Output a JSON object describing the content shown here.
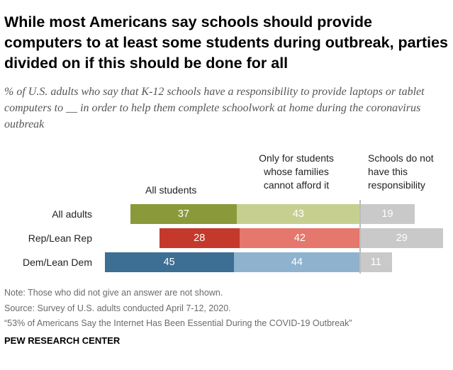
{
  "title": "While most Americans say schools should provide computers to at least some students during outbreak, parties divided on if this should be done for all",
  "subtitle": "% of U.S. adults who say that K-12 schools have a responsibility to provide laptops or tablet computers to __ in order to help them complete schoolwork at home during the coronavirus outbreak",
  "notes": {
    "note": "Note: Those who did not give an answer are not shown.",
    "source": "Source: Survey of U.S. adults conducted April 7-12, 2020.",
    "report": "“53% of Americans Say the Internet Has Been Essential During the COVID-19 Outbreak”"
  },
  "logo": "PEW RESEARCH CENTER",
  "chart_data": {
    "type": "bar",
    "stacked": true,
    "orientation": "horizontal",
    "title": "",
    "xlabel": "",
    "ylabel": "",
    "categories": [
      "All adults",
      "Rep/Lean Rep",
      "Dem/Lean Dem"
    ],
    "series": [
      {
        "name": "All students",
        "values": [
          37,
          28,
          45
        ],
        "colors": [
          "#8a9a3a",
          "#c4392b",
          "#3d6e94"
        ]
      },
      {
        "name": "Only for students whose families cannot afford it",
        "values": [
          43,
          42,
          44
        ],
        "colors": [
          "#c6cf8f",
          "#e5776c",
          "#8fb3cf"
        ]
      },
      {
        "name": "Schools do not have this responsibility",
        "values": [
          19,
          29,
          11
        ],
        "colors": [
          "#c9c9c9",
          "#c9c9c9",
          "#c9c9c9"
        ]
      }
    ],
    "series_headers": [
      "All students",
      "Only for students whose families cannot afford it",
      "Schools do not have this responsibility"
    ],
    "grid": false,
    "legend": "column headers above bars"
  }
}
